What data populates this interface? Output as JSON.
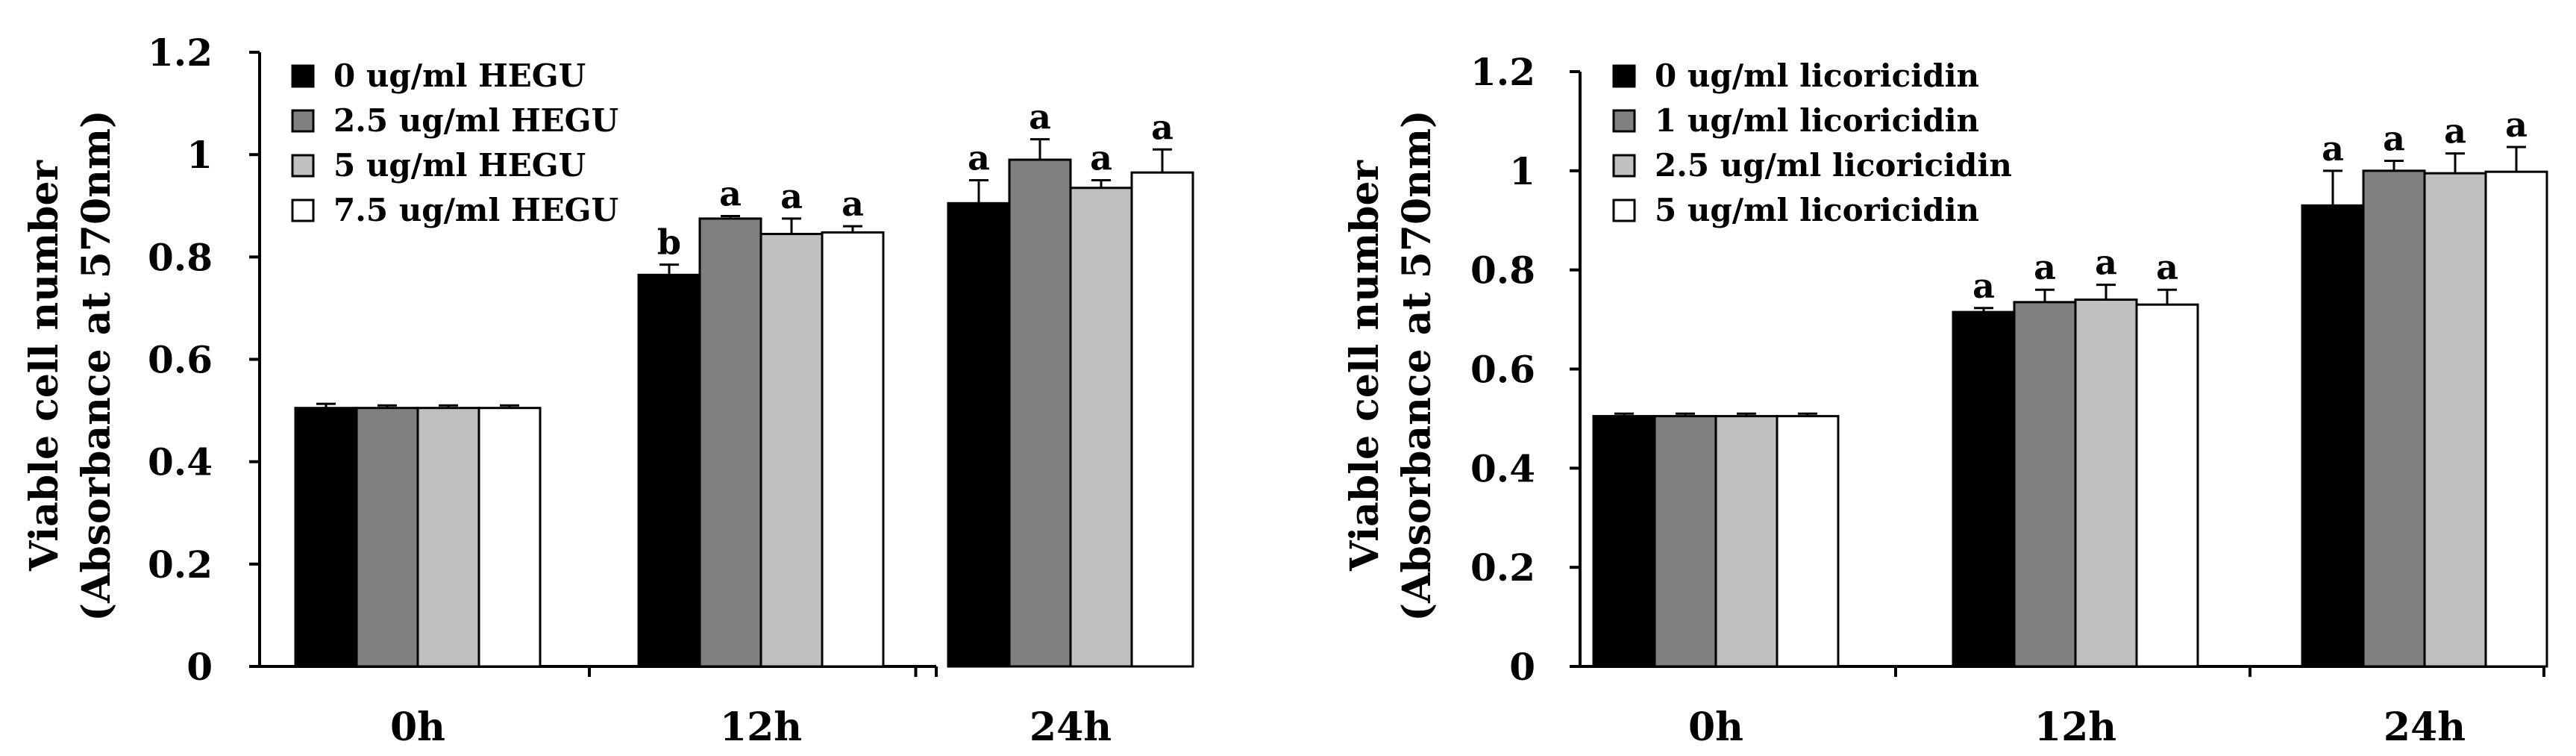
{
  "chart_data": [
    {
      "type": "bar",
      "categories": [
        "0h",
        "12h",
        "24h"
      ],
      "ylabel": [
        "Viable cell number",
        "(Absorbance at 570nm)"
      ],
      "ylim": [
        0,
        1.2
      ],
      "yticks": [
        "0",
        "0.2",
        "0.4",
        "0.6",
        "0.8",
        "1",
        "1.2"
      ],
      "ytick_values": [
        0,
        0.2,
        0.4,
        0.6,
        0.8,
        1.0,
        1.2
      ],
      "legend_position": "top-left",
      "grid": false,
      "series": [
        {
          "name": "0 ug/ml HEGU",
          "color": "#000000",
          "values": [
            0.505,
            0.765,
            0.905
          ],
          "errors": [
            0.008,
            0.02,
            0.045
          ],
          "letters": [
            "",
            "b",
            "a"
          ]
        },
        {
          "name": "2.5 ug/ml HEGU",
          "color": "#808080",
          "values": [
            0.505,
            0.875,
            0.99
          ],
          "errors": [
            0.005,
            0.005,
            0.04
          ],
          "letters": [
            "",
            "a",
            "a"
          ]
        },
        {
          "name": "5 ug/ml HEGU",
          "color": "#c0c0c0",
          "values": [
            0.505,
            0.845,
            0.935
          ],
          "errors": [
            0.005,
            0.03,
            0.015
          ],
          "letters": [
            "",
            "a",
            "a"
          ]
        },
        {
          "name": "7.5 ug/ml HEGU",
          "color": "#ffffff",
          "values": [
            0.505,
            0.848,
            0.965
          ],
          "errors": [
            0.005,
            0.012,
            0.045
          ],
          "letters": [
            "",
            "a",
            "a"
          ]
        }
      ]
    },
    {
      "type": "bar",
      "categories": [
        "0h",
        "12h",
        "24h"
      ],
      "ylabel": [
        "Viable cell number",
        "(Absorbance at 570nm)"
      ],
      "ylim": [
        0,
        1.2
      ],
      "yticks": [
        "0",
        "0.2",
        "0.4",
        "0.6",
        "0.8",
        "1",
        "1.2"
      ],
      "ytick_values": [
        0,
        0.2,
        0.4,
        0.6,
        0.8,
        1.0,
        1.2
      ],
      "legend_position": "top-left",
      "grid": false,
      "series": [
        {
          "name": "0 ug/ml licoricidin",
          "color": "#000000",
          "values": [
            0.505,
            0.715,
            0.93
          ],
          "errors": [
            0.005,
            0.008,
            0.07
          ],
          "letters": [
            "",
            "a",
            "a"
          ]
        },
        {
          "name": "1 ug/ml licoricidin",
          "color": "#808080",
          "values": [
            0.505,
            0.735,
            1.0
          ],
          "errors": [
            0.005,
            0.025,
            0.02
          ],
          "letters": [
            "",
            "a",
            "a"
          ]
        },
        {
          "name": "2.5 ug/ml licoricidin",
          "color": "#c0c0c0",
          "values": [
            0.505,
            0.74,
            0.995
          ],
          "errors": [
            0.005,
            0.03,
            0.04
          ],
          "letters": [
            "",
            "a",
            "a"
          ]
        },
        {
          "name": "5 ug/ml licoricidin",
          "color": "#ffffff",
          "values": [
            0.505,
            0.73,
            0.998
          ],
          "errors": [
            0.005,
            0.03,
            0.05
          ],
          "letters": [
            "",
            "a",
            "a"
          ]
        }
      ]
    }
  ]
}
